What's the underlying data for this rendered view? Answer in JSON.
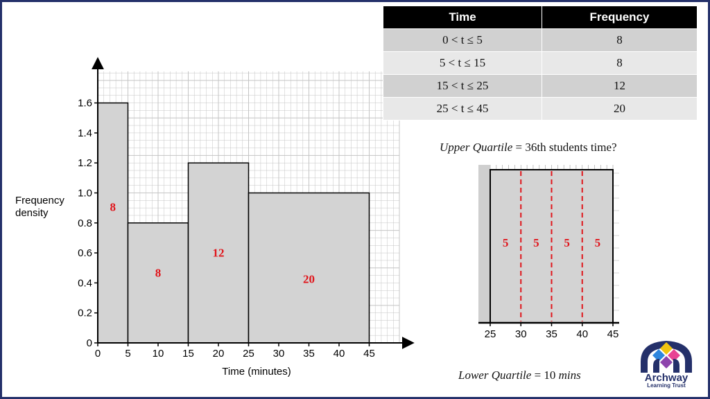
{
  "table": {
    "headers": [
      "Time",
      "Frequency"
    ],
    "rows": [
      {
        "time": "0 < t ≤ 5",
        "frequency": "8"
      },
      {
        "time": "5 < t ≤ 15",
        "frequency": "8"
      },
      {
        "time": "15 < t ≤ 25",
        "frequency": "12"
      },
      {
        "time": "25 < t ≤ 45",
        "frequency": "20"
      }
    ]
  },
  "upper_quartile": {
    "label": "Upper Quartile",
    "eq": " = 36th students time?"
  },
  "lower_quartile": {
    "label": "Lower Quartile",
    "eq": " = 10 ",
    "unit": "mins"
  },
  "logo": {
    "name": "Archway",
    "sub": "Learning Trust"
  },
  "colors": {
    "bar_fill": "#d3d3d3",
    "grid": "#c4c4c4",
    "annotation": "#e0151b",
    "frame": "#24306a"
  },
  "chart_data": [
    {
      "type": "bar",
      "variant": "histogram",
      "xlabel": "Time (minutes)",
      "ylabel": "Frequency density",
      "xlim": [
        0,
        50
      ],
      "ylim": [
        0,
        1.8
      ],
      "xticks": [
        0,
        5,
        10,
        15,
        20,
        25,
        30,
        35,
        40,
        45
      ],
      "yticks": [
        "0",
        "0.2",
        "0.4",
        "0.6",
        "0.8",
        "1.0",
        "1.2",
        "1.4",
        "1.6"
      ],
      "grid": true,
      "bars": [
        {
          "x0": 0,
          "x1": 5,
          "density": 1.6,
          "label": "8"
        },
        {
          "x0": 5,
          "x1": 15,
          "density": 0.8,
          "label": "8"
        },
        {
          "x0": 15,
          "x1": 25,
          "density": 1.2,
          "label": "12"
        },
        {
          "x0": 25,
          "x1": 45,
          "density": 1.0,
          "label": "20"
        }
      ]
    },
    {
      "type": "bar",
      "variant": "histogram-detail",
      "xlim": [
        25,
        45
      ],
      "xticks": [
        "25",
        "30",
        "35",
        "40",
        "45"
      ],
      "dividers": [
        30,
        35,
        40
      ],
      "segment_labels": [
        "5",
        "5",
        "5",
        "5"
      ]
    }
  ]
}
